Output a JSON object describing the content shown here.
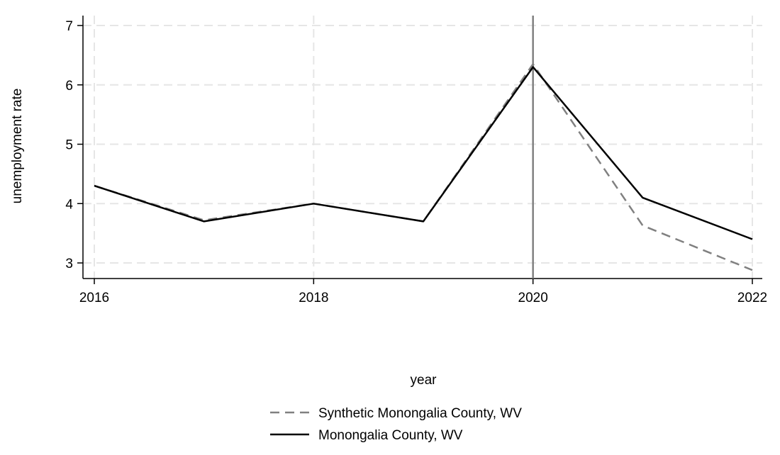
{
  "chart_data": {
    "type": "line",
    "title": "",
    "xlabel": "year",
    "ylabel": "unemployment rate",
    "x": [
      2016,
      2017,
      2018,
      2019,
      2020,
      2021,
      2022
    ],
    "x_ticks": [
      2016,
      2018,
      2020,
      2022
    ],
    "y_ticks": [
      3,
      4,
      5,
      6,
      7
    ],
    "xlim": [
      2016,
      2022
    ],
    "ylim": [
      2.8,
      7.2
    ],
    "grid": true,
    "legend_position": "bottom",
    "reference_line_x": 2020,
    "series": [
      {
        "name": "Synthetic Monongalia County, WV",
        "values": [
          4.3,
          3.72,
          4.0,
          3.7,
          6.35,
          3.63,
          2.88
        ],
        "style": "dashed",
        "color": "#808080"
      },
      {
        "name": "Monongalia County, WV",
        "values": [
          4.3,
          3.7,
          4.0,
          3.7,
          6.3,
          4.1,
          3.4
        ],
        "style": "solid",
        "color": "#000000"
      }
    ],
    "reference_line_color": "#808080",
    "grid_color": "#e6e6e6"
  }
}
